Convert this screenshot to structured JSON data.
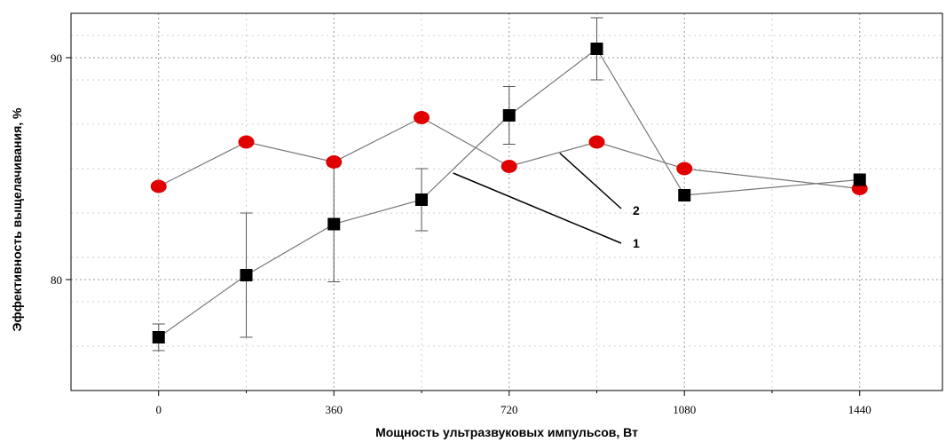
{
  "chart_data": {
    "type": "line",
    "title": "",
    "xlabel": "Мощность ультразвуковых импульсов, Вт",
    "ylabel": "Эффективность выщелачивания, %",
    "xlim": [
      -180,
      1610
    ],
    "ylim": [
      75,
      92
    ],
    "x_ticks": [
      0,
      360,
      720,
      1080,
      1440
    ],
    "x_tick_labels": [
      "0",
      "360",
      "720",
      "1080",
      "1440"
    ],
    "y_ticks": [
      80,
      90
    ],
    "y_tick_labels": [
      "80",
      "90"
    ],
    "grid": true,
    "series": [
      {
        "name": "1",
        "color": "#000000",
        "marker": "square",
        "x": [
          0,
          180,
          360,
          540,
          720,
          900,
          1080,
          1440
        ],
        "y": [
          77.4,
          80.2,
          82.5,
          83.6,
          87.4,
          90.4,
          83.8,
          84.5
        ],
        "error": [
          0.6,
          2.8,
          2.6,
          1.4,
          1.3,
          1.4,
          null,
          null
        ]
      },
      {
        "name": "2",
        "color": "#e00000",
        "marker": "circle",
        "x": [
          0,
          180,
          360,
          540,
          720,
          900,
          1080,
          1440
        ],
        "y": [
          84.2,
          86.2,
          85.3,
          87.3,
          85.1,
          86.2,
          85.0,
          84.1
        ]
      }
    ],
    "annotations": [
      {
        "text": "1",
        "series": "1"
      },
      {
        "text": "2",
        "series": "2"
      }
    ]
  }
}
